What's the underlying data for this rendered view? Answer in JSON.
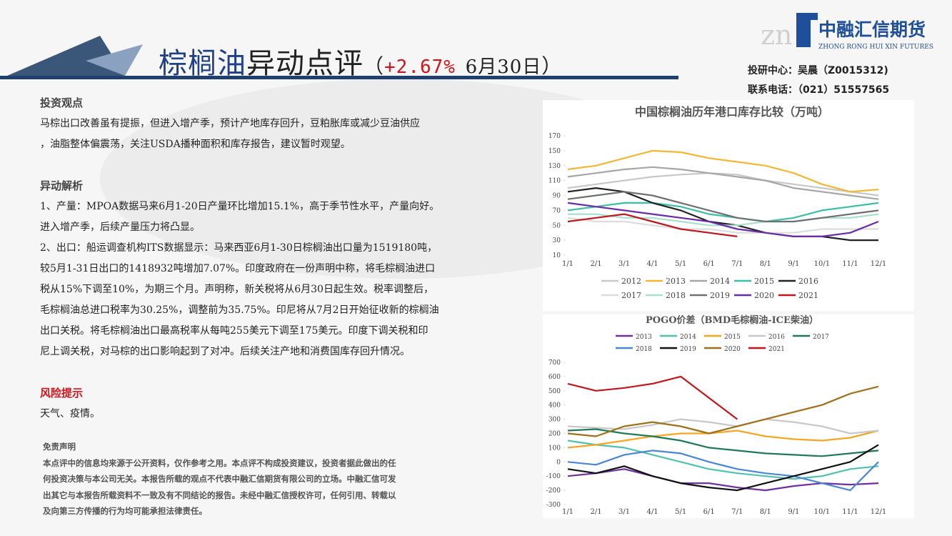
{
  "header": {
    "product": "棕榈油",
    "label": "异动点评",
    "open": "（",
    "change": "+2.67%",
    "date": "6月30日",
    "close": "）",
    "logo_cn": "中融汇信期货",
    "logo_en": "ZHONG RONG HUI XIN FUTURES",
    "contact": [
      "投研中心：吴晨（Z0015312)",
      "联系电话：（021）51557565"
    ]
  },
  "body": {
    "view_heading": "投资观点",
    "view_lines": [
      "马棕出口改善虽有提振，但进入增产季，预计产地库存回升，豆粕胀库或减少豆油供应",
      "，油脂整体偏震荡，关注USDA播种面积和库存报告，建议暂时观望。"
    ],
    "analysis_heading": "异动解析",
    "analysis_lines": [
      "1、产量：MPOA数据马来6月1-20日产量环比增加15.1%，高于季节性水平，产量向好。",
      "进入增产季，后续产量压力将凸显。",
      "2、出口：船运调查机构ITS数据显示：马来西亚6月1-30日棕榈油出口量为1519180吨，",
      "较5月1-31日出口的1418932吨增加7.07%。印度政府在一份声明中称，将毛棕榈油进口",
      "税从15%下调至10%，为期三个月。声明称，新关税将从6月30日起生效。税率调整后，",
      "毛棕榈油总进口税率为30.25%，调整前为35.75%。印尼将从7月2日开始征收新的棕榈油",
      "出口关税。将毛棕榈油出口最高税率从每吨255美元下调至175美元。印度下调关税和印",
      "尼上调关税，对马棕的出口影响起到了对冲。后续关注产地和消费国库存回升情况。"
    ],
    "risk_heading": "风险提示",
    "risk_text": "天气、疫情。",
    "disclaimer_heading": "免责声明",
    "disclaimer_lines": [
      "本点评中的信息均来源于公开资料，仅作参考之用。本点评不构成投资建议，投资者据此做出的任",
      "何投资决策与本公司无关。本报告所载的观点不代表中融汇信期货有限公司的立场。中融汇信可发",
      "出其它与本报告所载资料不一致及有不同结论的报告。未经中融汇信授权许可，任何引用、转载以",
      "及向第三方传播的行为均可能承担法律责任。"
    ]
  },
  "chart_data": [
    {
      "type": "line",
      "title": "中国棕榈油历年港口库存比较（万吨）",
      "categories": [
        "1/1",
        "2/1",
        "3/1",
        "4/1",
        "5/1",
        "6/1",
        "7/1",
        "8/1",
        "9/1",
        "10/1",
        "11/1",
        "12/1"
      ],
      "ylim": [
        10,
        170
      ],
      "yticks": [
        10,
        30,
        50,
        70,
        90,
        110,
        130,
        150,
        170
      ],
      "series": [
        {
          "name": "2012",
          "color": "#c8c8c8",
          "values": [
            100,
            105,
            110,
            115,
            118,
            120,
            118,
            110,
            105,
            100,
            95,
            90
          ]
        },
        {
          "name": "2013",
          "color": "#f5b731",
          "values": [
            125,
            130,
            140,
            150,
            148,
            140,
            135,
            130,
            120,
            105,
            95,
            98
          ]
        },
        {
          "name": "2014",
          "color": "#a6a6a6",
          "values": [
            115,
            120,
            125,
            128,
            125,
            120,
            115,
            110,
            100,
            95,
            90,
            85
          ]
        },
        {
          "name": "2015",
          "color": "#3cbfa8",
          "values": [
            70,
            75,
            80,
            80,
            75,
            65,
            60,
            55,
            60,
            70,
            75,
            80
          ]
        },
        {
          "name": "2016",
          "color": "#222222",
          "values": [
            95,
            100,
            95,
            80,
            70,
            55,
            50,
            40,
            35,
            35,
            30,
            30
          ]
        },
        {
          "name": "2017",
          "color": "#dcdcdc",
          "values": [
            60,
            55,
            55,
            50,
            45,
            45,
            40,
            40,
            40,
            45,
            45,
            45
          ]
        },
        {
          "name": "2018",
          "color": "#a8e0d0",
          "values": [
            65,
            65,
            60,
            60,
            55,
            50,
            50,
            55,
            55,
            60,
            60,
            65
          ]
        },
        {
          "name": "2019",
          "color": "#707070",
          "values": [
            85,
            90,
            95,
            90,
            80,
            70,
            60,
            55,
            55,
            60,
            65,
            70
          ]
        },
        {
          "name": "2020",
          "color": "#6a2ca8",
          "values": [
            80,
            75,
            70,
            65,
            60,
            55,
            45,
            40,
            35,
            35,
            40,
            55
          ]
        },
        {
          "name": "2021",
          "color": "#c0161c",
          "values": [
            55,
            60,
            65,
            55,
            45,
            40,
            35,
            null,
            null,
            null,
            null,
            null
          ]
        }
      ]
    },
    {
      "type": "line",
      "title": "POGO价差（BMD毛棕榈油-ICE柴油）",
      "categories": [
        "1/1",
        "2/1",
        "3/1",
        "4/1",
        "5/1",
        "6/1",
        "7/1",
        "8/1",
        "9/1",
        "10/1",
        "11/1",
        "12/1"
      ],
      "ylim": [
        -300,
        700
      ],
      "yticks": [
        -300,
        -200,
        -100,
        0,
        100,
        200,
        300,
        400,
        500,
        600,
        700
      ],
      "series": [
        {
          "name": "2013",
          "color": "#7030a0",
          "values": [
            -100,
            -80,
            -50,
            -100,
            -150,
            -150,
            -180,
            -200,
            -170,
            -150,
            -160,
            -150
          ]
        },
        {
          "name": "2014",
          "color": "#4fc1b0",
          "values": [
            150,
            120,
            100,
            50,
            0,
            -50,
            -80,
            -100,
            -120,
            -100,
            -50,
            -30
          ]
        },
        {
          "name": "2015",
          "color": "#f5a623",
          "values": [
            100,
            120,
            150,
            180,
            200,
            200,
            220,
            180,
            160,
            150,
            170,
            220
          ]
        },
        {
          "name": "2016",
          "color": "#c8c8c8",
          "values": [
            250,
            240,
            230,
            260,
            300,
            280,
            250,
            300,
            280,
            250,
            200,
            220
          ]
        },
        {
          "name": "2017",
          "color": "#1f7a5c",
          "values": [
            220,
            230,
            200,
            180,
            150,
            100,
            80,
            60,
            50,
            40,
            60,
            80
          ]
        },
        {
          "name": "2018",
          "color": "#4a86d8",
          "values": [
            0,
            -20,
            50,
            80,
            60,
            0,
            -50,
            -80,
            -100,
            -150,
            -200,
            0
          ]
        },
        {
          "name": "2019",
          "color": "#111111",
          "values": [
            -50,
            -80,
            -30,
            -100,
            -150,
            -180,
            -200,
            -150,
            -100,
            -50,
            0,
            120
          ]
        },
        {
          "name": "2020",
          "color": "#a0701a",
          "values": [
            200,
            180,
            250,
            280,
            250,
            200,
            250,
            300,
            350,
            400,
            480,
            530
          ]
        },
        {
          "name": "2021",
          "color": "#c0161c",
          "values": [
            550,
            500,
            520,
            550,
            600,
            450,
            300,
            null,
            null,
            null,
            null,
            null
          ]
        }
      ]
    }
  ]
}
